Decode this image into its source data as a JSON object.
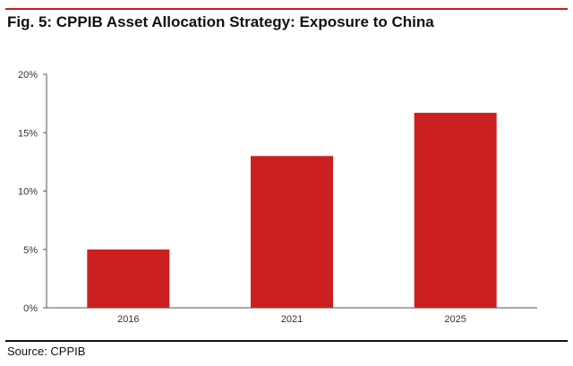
{
  "figure": {
    "title": "Fig. 5: CPPIB Asset Allocation Strategy: Exposure to China",
    "source": "Source: CPPIB"
  },
  "colors": {
    "accent": "#c81e1e",
    "bar": "#cc1f1f",
    "axis": "#555555",
    "text": "#333333"
  },
  "chart_data": {
    "type": "bar",
    "categories": [
      "2016",
      "2021",
      "2025"
    ],
    "values": [
      5,
      13,
      16.7
    ],
    "ylim": [
      0,
      20
    ],
    "yticks": [
      0,
      5,
      10,
      15,
      20
    ],
    "ytick_labels": [
      "0%",
      "5%",
      "10%",
      "15%",
      "20%"
    ],
    "grid": false,
    "legend": "none"
  }
}
